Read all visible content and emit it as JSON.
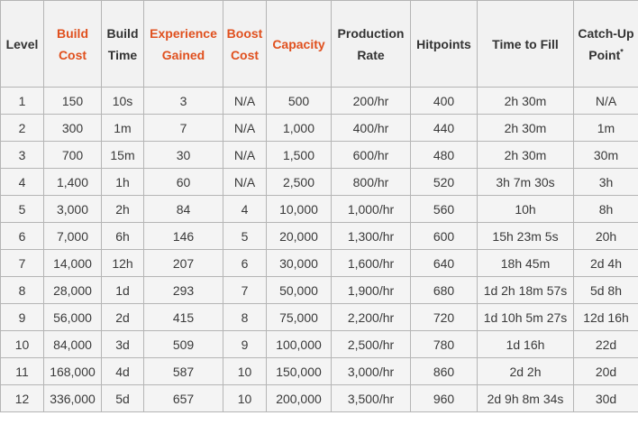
{
  "table": {
    "headers": [
      {
        "label": "Level",
        "highlight": false,
        "sup": ""
      },
      {
        "label": "Build Cost",
        "highlight": true,
        "sup": ""
      },
      {
        "label": "Build Time",
        "highlight": false,
        "sup": ""
      },
      {
        "label": "Experience Gained",
        "highlight": true,
        "sup": ""
      },
      {
        "label": "Boost Cost",
        "highlight": true,
        "sup": ""
      },
      {
        "label": "Capacity",
        "highlight": true,
        "sup": ""
      },
      {
        "label": "Production Rate",
        "highlight": false,
        "sup": ""
      },
      {
        "label": "Hitpoints",
        "highlight": false,
        "sup": ""
      },
      {
        "label": "Time to Fill",
        "highlight": false,
        "sup": ""
      },
      {
        "label": "Catch-Up Point",
        "highlight": false,
        "sup": "*"
      }
    ],
    "highlight_color": "#e0501e",
    "rows": [
      [
        "1",
        "150",
        "10s",
        "3",
        "N/A",
        "500",
        "200/hr",
        "400",
        "2h 30m",
        "N/A"
      ],
      [
        "2",
        "300",
        "1m",
        "7",
        "N/A",
        "1,000",
        "400/hr",
        "440",
        "2h 30m",
        "1m"
      ],
      [
        "3",
        "700",
        "15m",
        "30",
        "N/A",
        "1,500",
        "600/hr",
        "480",
        "2h 30m",
        "30m"
      ],
      [
        "4",
        "1,400",
        "1h",
        "60",
        "N/A",
        "2,500",
        "800/hr",
        "520",
        "3h 7m 30s",
        "3h"
      ],
      [
        "5",
        "3,000",
        "2h",
        "84",
        "4",
        "10,000",
        "1,000/hr",
        "560",
        "10h",
        "8h"
      ],
      [
        "6",
        "7,000",
        "6h",
        "146",
        "5",
        "20,000",
        "1,300/hr",
        "600",
        "15h 23m 5s",
        "20h"
      ],
      [
        "7",
        "14,000",
        "12h",
        "207",
        "6",
        "30,000",
        "1,600/hr",
        "640",
        "18h 45m",
        "2d 4h"
      ],
      [
        "8",
        "28,000",
        "1d",
        "293",
        "7",
        "50,000",
        "1,900/hr",
        "680",
        "1d 2h 18m 57s",
        "5d 8h"
      ],
      [
        "9",
        "56,000",
        "2d",
        "415",
        "8",
        "75,000",
        "2,200/hr",
        "720",
        "1d 10h 5m 27s",
        "12d 16h"
      ],
      [
        "10",
        "84,000",
        "3d",
        "509",
        "9",
        "100,000",
        "2,500/hr",
        "780",
        "1d 16h",
        "22d"
      ],
      [
        "11",
        "168,000",
        "4d",
        "587",
        "10",
        "150,000",
        "3,000/hr",
        "860",
        "2d 2h",
        "20d"
      ],
      [
        "12",
        "336,000",
        "5d",
        "657",
        "10",
        "200,000",
        "3,500/hr",
        "960",
        "2d 9h 8m 34s",
        "30d"
      ]
    ]
  }
}
